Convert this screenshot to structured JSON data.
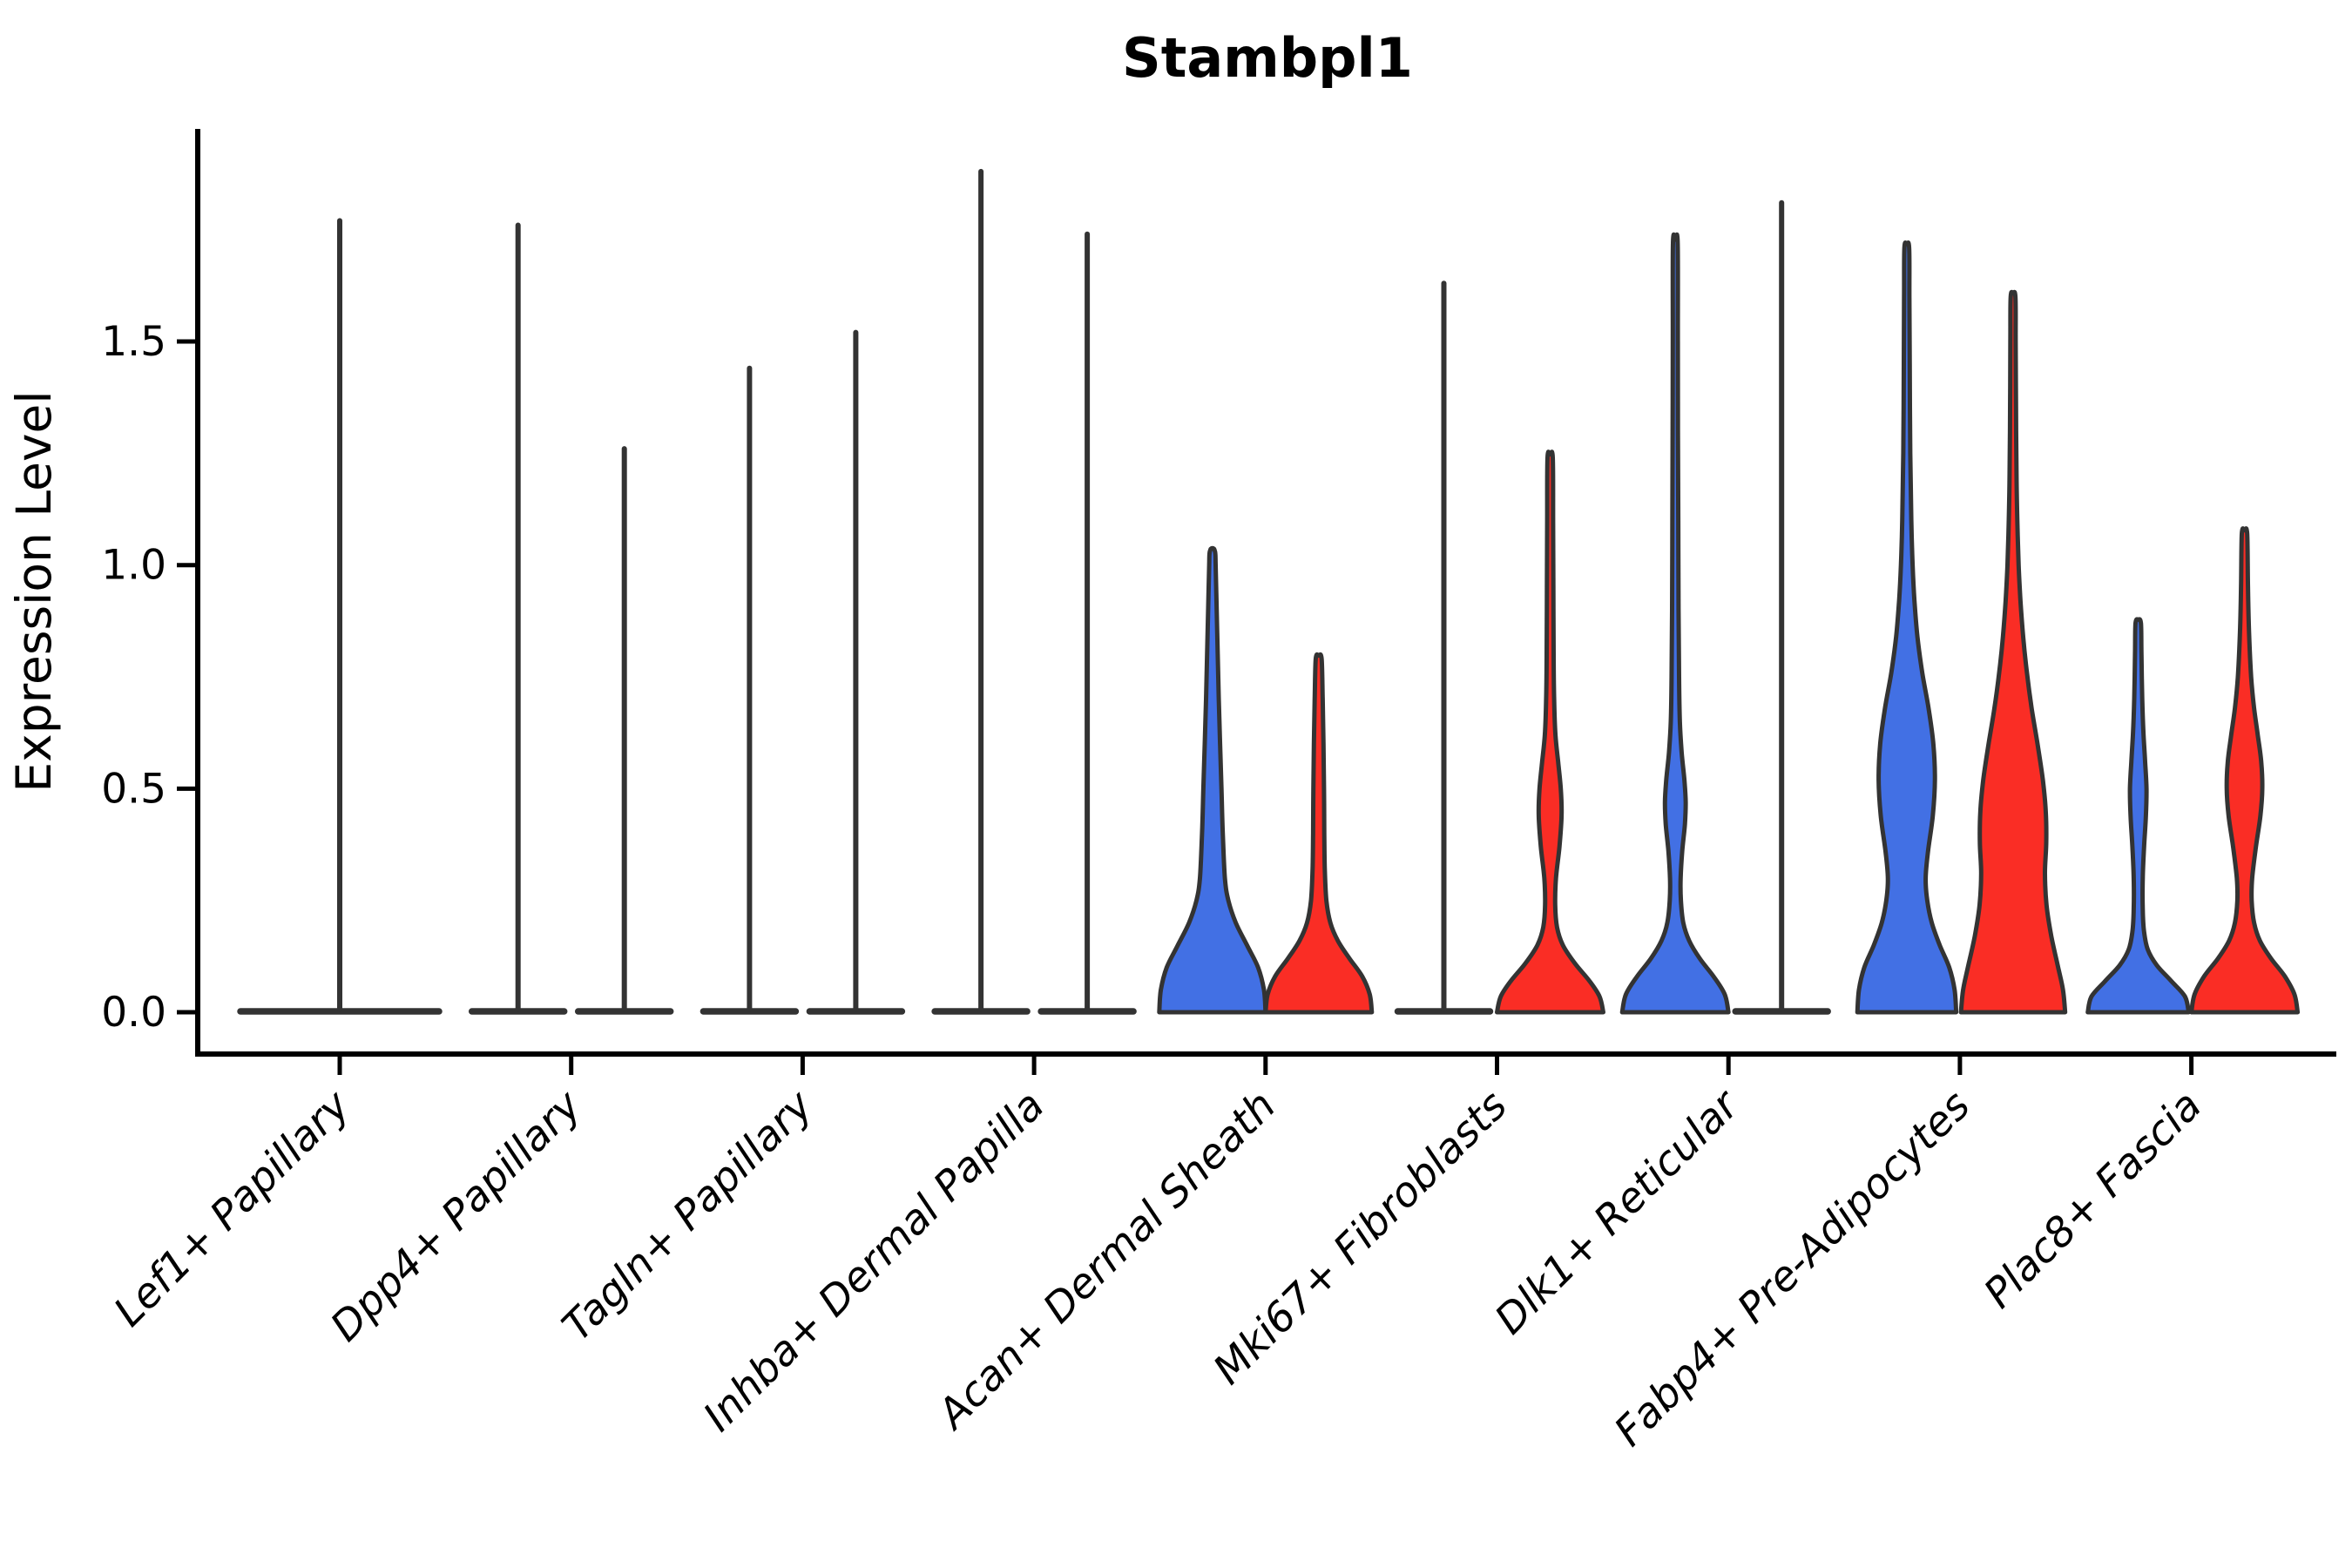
{
  "title": "Stambpl1",
  "y_axis": {
    "label": "Expression Level",
    "ticks": [
      {
        "label": "0.0",
        "value": 0.0
      },
      {
        "label": "0.5",
        "value": 0.5
      },
      {
        "label": "1.0",
        "value": 1.0
      },
      {
        "label": "1.5",
        "value": 1.5
      }
    ]
  },
  "x_axis": {
    "categories": [
      "Lef1+ Papillary",
      "Dpp4+ Papillary",
      "Tagln+ Papillary",
      "Inhba+ Dermal Papilla",
      "Acan+ Dermal Sheath",
      "Mki67+ Fibroblasts",
      "Dlk1+ Reticular",
      "Fabp4+ Pre-Adipocytes",
      "Plac8+ Fascia"
    ]
  },
  "style": {
    "blue": "#4270E4",
    "red": "#FA2D25",
    "violin_stroke": "#333333",
    "axis_color": "#000000",
    "background": "#ffffff"
  },
  "chart_data": {
    "type": "violin",
    "title": "Stambpl1",
    "ylabel": "Expression Level",
    "ylim": [
      0,
      1.97
    ],
    "yticks": [
      0.0,
      0.5,
      1.0,
      1.5
    ],
    "legend": "none shown; two dodged violins per category distinguished by fill color (blue left, red right); flat outline-only violins indicate expression concentrated at 0 with a thin tail spike",
    "categories": [
      "Lef1+ Papillary",
      "Dpp4+ Papillary",
      "Tagln+ Papillary",
      "Inhba+ Dermal Papilla",
      "Acan+ Dermal Sheath",
      "Mki67+ Fibroblasts",
      "Dlk1+ Reticular",
      "Fabp4+ Pre-Adipocytes",
      "Plac8+ Fascia"
    ],
    "violins": [
      {
        "category": "Lef1+ Papillary",
        "slot": "full",
        "fill": "none",
        "shape": "flat_spike",
        "max": 1.78
      },
      {
        "category": "Dpp4+ Papillary",
        "slot": "left",
        "fill": "none",
        "shape": "flat_spike",
        "max": 1.77
      },
      {
        "category": "Dpp4+ Papillary",
        "slot": "right",
        "fill": "none",
        "shape": "flat_spike",
        "max": 1.27
      },
      {
        "category": "Tagln+ Papillary",
        "slot": "left",
        "fill": "none",
        "shape": "flat_spike",
        "max": 1.45
      },
      {
        "category": "Tagln+ Papillary",
        "slot": "right",
        "fill": "none",
        "shape": "flat_spike",
        "max": 1.53
      },
      {
        "category": "Inhba+ Dermal Papilla",
        "slot": "left",
        "fill": "none",
        "shape": "flat_spike",
        "max": 1.89
      },
      {
        "category": "Inhba+ Dermal Papilla",
        "slot": "right",
        "fill": "none",
        "shape": "flat_spike",
        "max": 1.75
      },
      {
        "category": "Acan+ Dermal Sheath",
        "slot": "left",
        "fill": "blue",
        "shape": "density",
        "max": 1.03,
        "profile": [
          [
            0,
            1.0
          ],
          [
            0.05,
            0.97
          ],
          [
            0.1,
            0.86
          ],
          [
            0.15,
            0.65
          ],
          [
            0.2,
            0.44
          ],
          [
            0.25,
            0.3
          ],
          [
            0.3,
            0.235
          ],
          [
            0.4,
            0.195
          ],
          [
            0.5,
            0.17
          ],
          [
            0.6,
            0.145
          ],
          [
            0.7,
            0.12
          ],
          [
            0.8,
            0.1
          ],
          [
            0.9,
            0.08
          ],
          [
            1.0,
            0.06
          ],
          [
            1.03,
            0.05
          ]
        ]
      },
      {
        "category": "Acan+ Dermal Sheath",
        "slot": "right",
        "fill": "red",
        "shape": "density",
        "max": 0.79,
        "profile": [
          [
            0,
            1.0
          ],
          [
            0.04,
            0.96
          ],
          [
            0.08,
            0.82
          ],
          [
            0.12,
            0.58
          ],
          [
            0.16,
            0.36
          ],
          [
            0.2,
            0.22
          ],
          [
            0.25,
            0.145
          ],
          [
            0.32,
            0.115
          ],
          [
            0.4,
            0.105
          ],
          [
            0.5,
            0.1
          ],
          [
            0.6,
            0.09
          ],
          [
            0.7,
            0.075
          ],
          [
            0.79,
            0.055
          ]
        ]
      },
      {
        "category": "Mki67+ Fibroblasts",
        "slot": "left",
        "fill": "none",
        "shape": "flat_spike",
        "max": 1.64
      },
      {
        "category": "Mki67+ Fibroblasts",
        "slot": "right",
        "fill": "red",
        "shape": "density",
        "max": 1.24,
        "profile": [
          [
            0,
            1.0
          ],
          [
            0.035,
            0.93
          ],
          [
            0.07,
            0.74
          ],
          [
            0.11,
            0.46
          ],
          [
            0.15,
            0.24
          ],
          [
            0.19,
            0.13
          ],
          [
            0.24,
            0.095
          ],
          [
            0.3,
            0.11
          ],
          [
            0.37,
            0.175
          ],
          [
            0.44,
            0.215
          ],
          [
            0.5,
            0.2
          ],
          [
            0.56,
            0.15
          ],
          [
            0.62,
            0.1
          ],
          [
            0.7,
            0.075
          ],
          [
            0.8,
            0.065
          ],
          [
            0.95,
            0.06
          ],
          [
            1.1,
            0.055
          ],
          [
            1.24,
            0.05
          ]
        ]
      },
      {
        "category": "Dlk1+ Reticular",
        "slot": "left",
        "fill": "blue",
        "shape": "density",
        "max": 1.72,
        "profile": [
          [
            0,
            1.0
          ],
          [
            0.04,
            0.93
          ],
          [
            0.08,
            0.72
          ],
          [
            0.12,
            0.46
          ],
          [
            0.16,
            0.26
          ],
          [
            0.2,
            0.15
          ],
          [
            0.25,
            0.105
          ],
          [
            0.3,
            0.1
          ],
          [
            0.36,
            0.13
          ],
          [
            0.42,
            0.18
          ],
          [
            0.47,
            0.195
          ],
          [
            0.52,
            0.17
          ],
          [
            0.58,
            0.12
          ],
          [
            0.65,
            0.085
          ],
          [
            0.75,
            0.07
          ],
          [
            0.9,
            0.06
          ],
          [
            1.1,
            0.055
          ],
          [
            1.3,
            0.05
          ],
          [
            1.5,
            0.047
          ],
          [
            1.72,
            0.045
          ]
        ]
      },
      {
        "category": "Dlk1+ Reticular",
        "slot": "right",
        "fill": "none",
        "shape": "flat_spike",
        "max": 1.82
      },
      {
        "category": "Fabp4+ Pre-Adipocytes",
        "slot": "left",
        "fill": "blue",
        "shape": "density",
        "max": 1.71,
        "profile": [
          [
            0,
            0.93
          ],
          [
            0.05,
            0.9
          ],
          [
            0.1,
            0.8
          ],
          [
            0.15,
            0.62
          ],
          [
            0.2,
            0.47
          ],
          [
            0.25,
            0.385
          ],
          [
            0.3,
            0.355
          ],
          [
            0.36,
            0.4
          ],
          [
            0.44,
            0.49
          ],
          [
            0.52,
            0.53
          ],
          [
            0.6,
            0.5
          ],
          [
            0.68,
            0.41
          ],
          [
            0.76,
            0.29
          ],
          [
            0.84,
            0.2
          ],
          [
            0.92,
            0.145
          ],
          [
            1.0,
            0.11
          ],
          [
            1.1,
            0.085
          ],
          [
            1.25,
            0.065
          ],
          [
            1.45,
            0.055
          ],
          [
            1.6,
            0.05
          ],
          [
            1.71,
            0.045
          ]
        ]
      },
      {
        "category": "Fabp4+ Pre-Adipocytes",
        "slot": "right",
        "fill": "red",
        "shape": "density",
        "max": 1.6,
        "profile": [
          [
            0,
            0.98
          ],
          [
            0.05,
            0.94
          ],
          [
            0.1,
            0.85
          ],
          [
            0.17,
            0.72
          ],
          [
            0.24,
            0.63
          ],
          [
            0.31,
            0.6
          ],
          [
            0.38,
            0.625
          ],
          [
            0.45,
            0.615
          ],
          [
            0.52,
            0.56
          ],
          [
            0.6,
            0.46
          ],
          [
            0.68,
            0.35
          ],
          [
            0.76,
            0.26
          ],
          [
            0.84,
            0.19
          ],
          [
            0.92,
            0.14
          ],
          [
            1.0,
            0.105
          ],
          [
            1.1,
            0.08
          ],
          [
            1.2,
            0.065
          ],
          [
            1.35,
            0.055
          ],
          [
            1.5,
            0.05
          ],
          [
            1.6,
            0.045
          ]
        ]
      },
      {
        "category": "Plac8+ Fascia",
        "slot": "left",
        "fill": "blue",
        "shape": "density",
        "max": 0.87,
        "profile": [
          [
            0,
            0.95
          ],
          [
            0.035,
            0.88
          ],
          [
            0.07,
            0.62
          ],
          [
            0.105,
            0.35
          ],
          [
            0.14,
            0.18
          ],
          [
            0.18,
            0.11
          ],
          [
            0.23,
            0.085
          ],
          [
            0.3,
            0.085
          ],
          [
            0.37,
            0.11
          ],
          [
            0.44,
            0.145
          ],
          [
            0.5,
            0.155
          ],
          [
            0.56,
            0.13
          ],
          [
            0.62,
            0.1
          ],
          [
            0.7,
            0.075
          ],
          [
            0.8,
            0.06
          ],
          [
            0.87,
            0.05
          ]
        ]
      },
      {
        "category": "Plac8+ Fascia",
        "slot": "right",
        "fill": "red",
        "shape": "density",
        "max": 1.07,
        "profile": [
          [
            0,
            1.0
          ],
          [
            0.04,
            0.94
          ],
          [
            0.08,
            0.76
          ],
          [
            0.12,
            0.5
          ],
          [
            0.16,
            0.29
          ],
          [
            0.2,
            0.18
          ],
          [
            0.25,
            0.135
          ],
          [
            0.3,
            0.145
          ],
          [
            0.37,
            0.215
          ],
          [
            0.44,
            0.3
          ],
          [
            0.5,
            0.335
          ],
          [
            0.56,
            0.315
          ],
          [
            0.62,
            0.25
          ],
          [
            0.68,
            0.18
          ],
          [
            0.75,
            0.125
          ],
          [
            0.85,
            0.085
          ],
          [
            0.95,
            0.065
          ],
          [
            1.07,
            0.05
          ]
        ]
      }
    ]
  }
}
